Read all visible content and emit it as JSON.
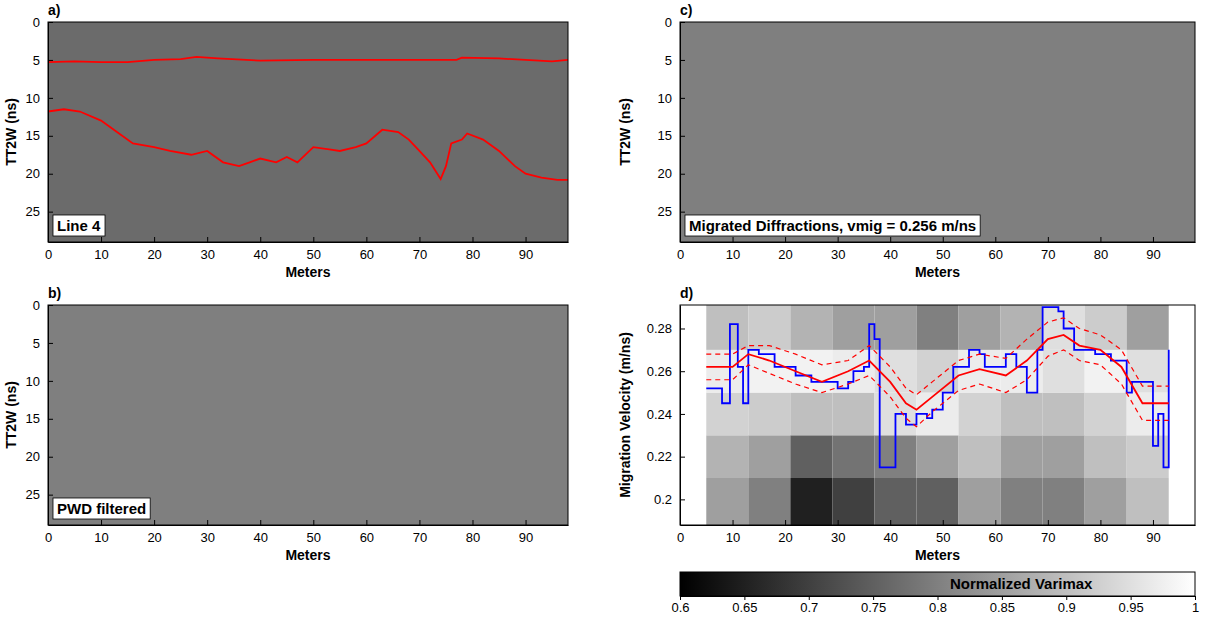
{
  "chart_data": [
    {
      "type": "radargram",
      "panel_label": "a)",
      "annotation": "Line 4",
      "x_label": "Meters",
      "y_label": "TT2W (ns)",
      "xlim": [
        0,
        98
      ],
      "xticks": [
        0,
        10,
        20,
        30,
        40,
        50,
        60,
        70,
        80,
        90
      ],
      "ylim": [
        0,
        29
      ],
      "yticks": [
        0,
        5,
        10,
        15,
        20,
        25
      ],
      "series": [
        {
          "color": "#ff0000",
          "line_style": "solid",
          "x": [
            0,
            5,
            10,
            15,
            20,
            25,
            28,
            32,
            40,
            50,
            60,
            70,
            77,
            78,
            85,
            90,
            95,
            98
          ],
          "values": [
            5.3,
            5.2,
            5.3,
            5.3,
            5.0,
            4.9,
            4.6,
            4.8,
            5.1,
            5.0,
            5.0,
            5.0,
            5.0,
            4.7,
            4.8,
            5.0,
            5.2,
            5.0
          ]
        },
        {
          "color": "#ff0000",
          "line_style": "solid",
          "x": [
            0,
            3,
            6,
            10,
            13,
            16,
            20,
            23,
            27,
            30,
            33,
            36,
            38,
            40,
            43,
            45,
            47,
            50,
            53,
            55,
            58,
            60,
            63,
            66,
            68,
            70,
            72,
            74,
            75,
            76,
            78,
            79,
            82,
            85,
            88,
            90,
            93,
            96,
            98
          ],
          "values": [
            11.8,
            11.5,
            11.8,
            13,
            14.5,
            16,
            16.5,
            17,
            17.5,
            17,
            18.5,
            19,
            18.5,
            18,
            18.5,
            17.8,
            18.5,
            16.5,
            16.8,
            17,
            16.5,
            16,
            14.2,
            14.5,
            15.5,
            17,
            18.5,
            20.7,
            19,
            16,
            15.5,
            14.7,
            15.5,
            17,
            19,
            20,
            20.5,
            20.8,
            20.8
          ]
        }
      ]
    },
    {
      "type": "radargram",
      "panel_label": "b)",
      "annotation": "PWD filtered",
      "x_label": "Meters",
      "y_label": "TT2W (ns)",
      "xlim": [
        0,
        98
      ],
      "xticks": [
        0,
        10,
        20,
        30,
        40,
        50,
        60,
        70,
        80,
        90
      ],
      "ylim": [
        0,
        29
      ],
      "yticks": [
        0,
        5,
        10,
        15,
        20,
        25
      ]
    },
    {
      "type": "radargram",
      "panel_label": "c)",
      "annotation": "Migrated Diffractions, vmig = 0.256 m/ns",
      "x_label": "Meters",
      "y_label": "TT2W (ns)",
      "xlim": [
        0,
        98
      ],
      "xticks": [
        0,
        10,
        20,
        30,
        40,
        50,
        60,
        70,
        80,
        90
      ],
      "ylim": [
        0,
        29
      ],
      "yticks": [
        0,
        5,
        10,
        15,
        20,
        25
      ]
    },
    {
      "type": "heatmap",
      "panel_label": "d)",
      "x_label": "Meters",
      "y_label": "Migration Velocity (m/ns)",
      "xlim": [
        0,
        98
      ],
      "xticks": [
        0,
        10,
        20,
        30,
        40,
        50,
        60,
        70,
        80,
        90
      ],
      "ylim": [
        0.188,
        0.291
      ],
      "yticks": [
        0.2,
        0.22,
        0.24,
        0.26,
        0.28
      ],
      "heatmap": {
        "x_edges": [
          5,
          13,
          21,
          29,
          37,
          45,
          53,
          61,
          69,
          77,
          85,
          93
        ],
        "y_edges": [
          0.188,
          0.21,
          0.23,
          0.25,
          0.27,
          0.291
        ],
        "cells": [
          [
            0.85,
            0.8,
            0.65,
            0.7,
            0.75,
            0.75,
            0.85,
            0.8,
            0.8,
            0.85,
            0.9
          ],
          [
            0.88,
            0.85,
            0.75,
            0.78,
            0.8,
            0.85,
            0.9,
            0.85,
            0.85,
            0.9,
            0.92
          ],
          [
            0.93,
            0.92,
            0.9,
            0.9,
            0.95,
            0.97,
            0.93,
            0.9,
            0.9,
            0.93,
            0.97
          ],
          [
            0.97,
            0.98,
            0.98,
            0.97,
            0.95,
            0.93,
            0.97,
            0.97,
            0.95,
            0.98,
            0.95
          ],
          [
            0.9,
            0.92,
            0.88,
            0.85,
            0.85,
            0.8,
            0.85,
            0.88,
            0.95,
            0.92,
            0.85
          ]
        ],
        "colorbar": {
          "label": "Normalized Varimax",
          "range": [
            0.6,
            1
          ],
          "ticks": [
            0.6,
            0.65,
            0.7,
            0.75,
            0.8,
            0.85,
            0.9,
            0.95,
            1
          ]
        }
      },
      "series": [
        {
          "color": "#0000ff",
          "line_style": "step",
          "x": [
            5,
            8,
            9.5,
            11,
            12,
            13,
            15,
            18,
            22,
            25,
            30,
            32,
            33,
            35,
            36,
            37,
            38,
            40,
            41,
            43,
            45,
            47,
            48,
            50,
            52,
            55,
            57,
            58,
            60,
            62,
            64,
            66,
            68,
            69,
            72,
            73,
            75,
            77,
            79,
            82,
            85,
            86,
            88,
            90,
            91,
            92,
            93
          ],
          "values": [
            0.252,
            0.245,
            0.282,
            0.262,
            0.245,
            0.27,
            0.268,
            0.262,
            0.258,
            0.255,
            0.252,
            0.255,
            0.26,
            0.262,
            0.282,
            0.275,
            0.215,
            0.215,
            0.24,
            0.235,
            0.24,
            0.238,
            0.242,
            0.25,
            0.262,
            0.27,
            0.268,
            0.262,
            0.262,
            0.268,
            0.262,
            0.25,
            0.27,
            0.29,
            0.288,
            0.28,
            0.27,
            0.27,
            0.268,
            0.265,
            0.25,
            0.255,
            0.255,
            0.225,
            0.24,
            0.215,
            0.27
          ]
        },
        {
          "color": "#ff0000",
          "line_style": "solid",
          "x": [
            5,
            10,
            13,
            17,
            22,
            27,
            32,
            36,
            40,
            43,
            45,
            48,
            53,
            57,
            62,
            66,
            70,
            73,
            76,
            80,
            84,
            88,
            93
          ],
          "values": [
            0.262,
            0.262,
            0.268,
            0.265,
            0.26,
            0.255,
            0.26,
            0.265,
            0.255,
            0.245,
            0.242,
            0.248,
            0.258,
            0.261,
            0.258,
            0.265,
            0.275,
            0.277,
            0.272,
            0.27,
            0.262,
            0.245,
            0.245
          ]
        },
        {
          "color": "#ff0000",
          "line_style": "dashed",
          "x": [
            5,
            10,
            13,
            17,
            22,
            27,
            32,
            36,
            40,
            43,
            45,
            48,
            53,
            57,
            62,
            66,
            70,
            73,
            76,
            80,
            84,
            88,
            93
          ],
          "values": [
            0.268,
            0.268,
            0.272,
            0.272,
            0.268,
            0.263,
            0.265,
            0.272,
            0.262,
            0.252,
            0.249,
            0.255,
            0.265,
            0.268,
            0.266,
            0.275,
            0.283,
            0.285,
            0.28,
            0.277,
            0.27,
            0.253,
            0.253
          ]
        },
        {
          "color": "#ff0000",
          "line_style": "dashed",
          "x": [
            5,
            10,
            13,
            17,
            22,
            27,
            32,
            36,
            40,
            43,
            45,
            48,
            53,
            57,
            62,
            66,
            70,
            73,
            76,
            80,
            84,
            88,
            93
          ],
          "values": [
            0.256,
            0.256,
            0.263,
            0.259,
            0.254,
            0.25,
            0.254,
            0.258,
            0.248,
            0.238,
            0.234,
            0.241,
            0.251,
            0.254,
            0.25,
            0.256,
            0.267,
            0.27,
            0.265,
            0.263,
            0.254,
            0.237,
            0.237
          ]
        }
      ]
    }
  ]
}
